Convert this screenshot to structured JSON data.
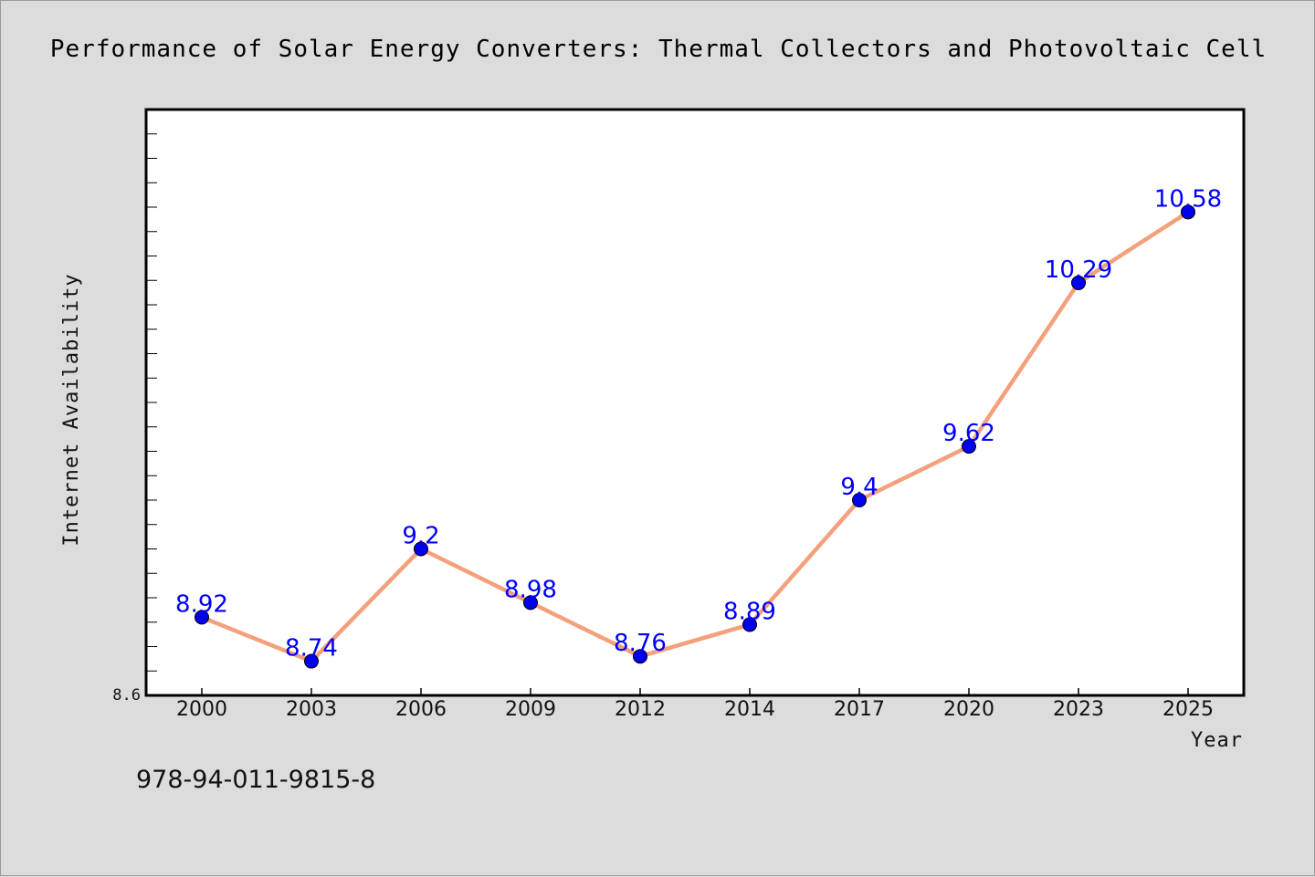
{
  "chart_data": {
    "type": "line",
    "title": "Performance of Solar Energy Converters: Thermal Collectors and Photovoltaic Cell",
    "xlabel": "Year",
    "ylabel": "Internet Availability",
    "categories": [
      "2000",
      "2003",
      "2006",
      "2009",
      "2012",
      "2014",
      "2017",
      "2020",
      "2023",
      "2025"
    ],
    "series": [
      {
        "values": [
          8.92,
          8.74,
          9.2,
          8.98,
          8.76,
          8.89,
          9.4,
          9.62,
          10.29,
          10.58
        ],
        "labels": [
          "8.92",
          "8.74",
          "9.2",
          "8.98",
          "8.76",
          "8.89",
          "9.4",
          "9.62",
          "10.29",
          "10.58"
        ],
        "line_color": "#f4a07c",
        "marker_color": "#0000ee"
      }
    ],
    "ylim": [
      8.6,
      11.0
    ],
    "ytick_labels": [
      "8.6"
    ],
    "minor_tick_step": 0.2,
    "grid": false,
    "legend": "none"
  },
  "footer": {
    "isbn": "978-94-011-9815-8"
  },
  "colors": {
    "background": "#dcdcdc",
    "plot_area": "#ffffff",
    "frame": "#000000",
    "data_label": "#0000ff"
  }
}
